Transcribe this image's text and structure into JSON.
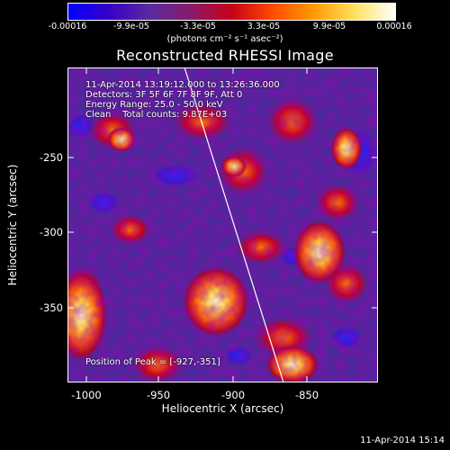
{
  "colorbar": {
    "ticks": [
      "-0.00016",
      "-9.9e-05",
      "-3.3e-05",
      "3.3e-05",
      "9.9e-05",
      "0.00016"
    ],
    "units": "(photons cm⁻² s⁻¹ asec⁻²)",
    "colors": [
      "#0000ff",
      "#3a00c8",
      "#5a2aa0",
      "#8a1a6a",
      "#c8001a",
      "#ff4a00",
      "#ff9a00",
      "#ffe060",
      "#ffffff"
    ]
  },
  "title": "Reconstructed RHESSI Image",
  "annotations": {
    "line1": "11-Apr-2014 13:19:12.000 to 13:26:36.000",
    "line2": "Detectors: 3F 5F 6F 7F 8F 9F, Att 0",
    "line3": "Energy Range: 25.0 - 50.0 keV",
    "line4": "Clean    Total counts: 9.87E+03",
    "peak": "Position of Peak = [-927,-351]"
  },
  "axes": {
    "xlabel": "Heliocentric X (arcsec)",
    "ylabel": "Heliocentric Y (arcsec)",
    "xticks": [
      "-1000",
      "-950",
      "-900",
      "-850"
    ],
    "yticks": [
      "-250",
      "-300",
      "-350"
    ]
  },
  "timestamp": "11-Apr-2014 15:14"
}
